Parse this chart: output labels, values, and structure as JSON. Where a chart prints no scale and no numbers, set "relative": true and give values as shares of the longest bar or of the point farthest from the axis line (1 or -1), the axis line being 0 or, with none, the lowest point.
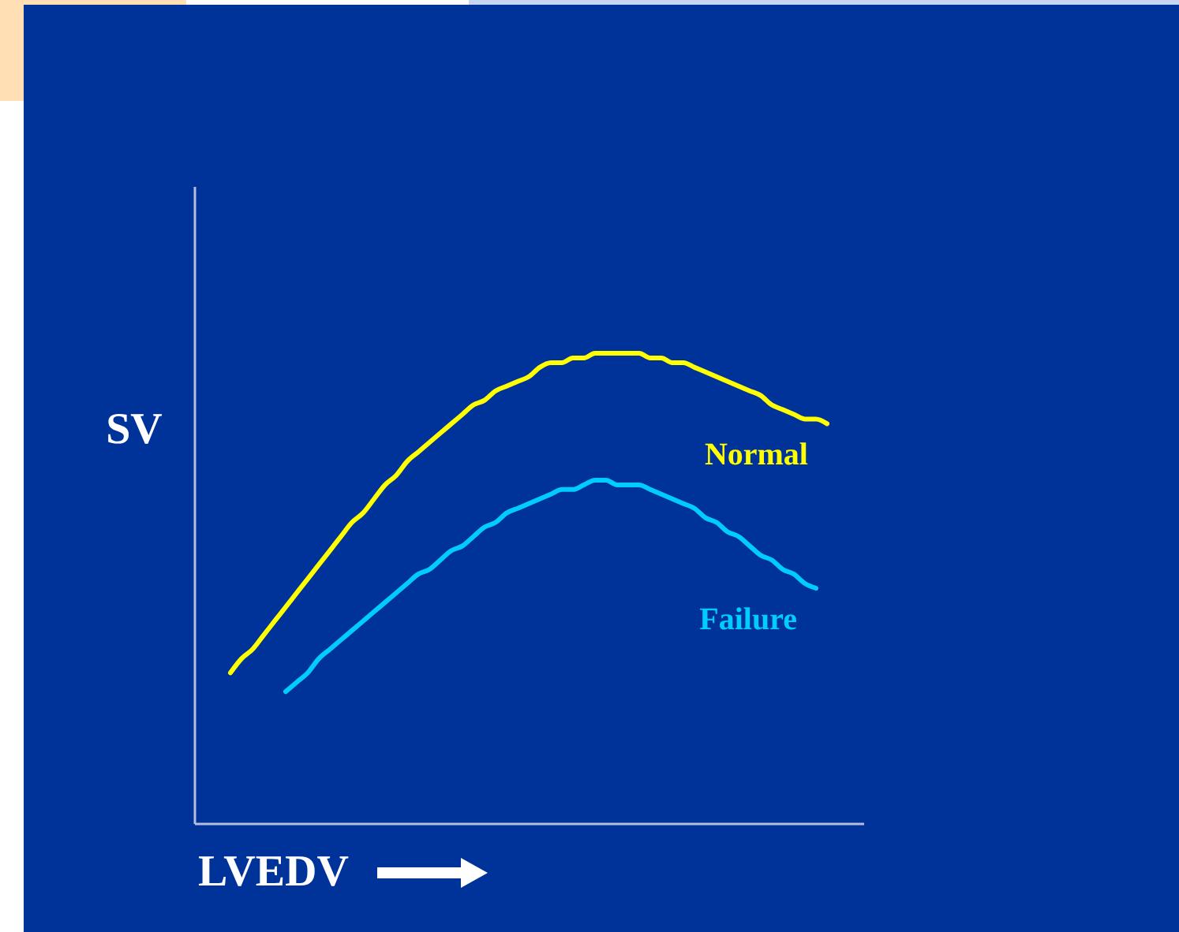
{
  "chart_data": {
    "type": "line",
    "relative": true,
    "xlabel": "LVEDV",
    "ylabel": "SV",
    "categories": [
      null,
      null,
      null,
      null,
      null,
      null,
      null,
      null,
      null,
      null,
      null,
      null,
      null,
      null,
      null,
      null,
      null,
      null,
      null,
      null,
      null,
      null,
      null,
      null,
      null,
      null,
      null,
      null,
      null,
      null,
      null,
      null,
      null,
      null,
      null,
      null,
      null,
      null,
      null,
      null,
      null,
      null,
      null,
      null,
      null,
      null,
      null,
      null,
      null,
      null,
      null,
      null,
      null,
      null,
      null
    ],
    "series": [
      {
        "name": "Normal",
        "color": "#ffff00",
        "values": [
          0.32,
          0.35,
          0.37,
          0.4,
          0.43,
          0.46,
          0.49,
          0.52,
          0.55,
          0.58,
          0.61,
          0.64,
          0.66,
          0.69,
          0.72,
          0.74,
          0.77,
          0.79,
          0.81,
          0.83,
          0.85,
          0.87,
          0.89,
          0.9,
          0.92,
          0.93,
          0.94,
          0.95,
          0.97,
          0.98,
          0.98,
          0.99,
          0.99,
          1.0,
          1,
          1,
          1,
          1.0,
          0.99,
          0.99,
          0.98,
          0.98,
          0.97,
          0.96,
          0.95,
          0.94,
          0.93,
          0.92,
          0.91,
          0.89,
          0.88,
          0.87,
          0.86,
          0.86,
          0.85
        ]
      },
      {
        "name": "Failure",
        "color": "#00ccff",
        "values": [
          null,
          null,
          null,
          null,
          null,
          0.28,
          0.3,
          0.32,
          0.35,
          0.37,
          0.39,
          0.41,
          0.43,
          0.45,
          0.47,
          0.49,
          0.51,
          0.53,
          0.54,
          0.56,
          0.58,
          0.59,
          0.61,
          0.63,
          0.64,
          0.66,
          0.67,
          0.68,
          0.69,
          0.7,
          0.71,
          0.71,
          0.72,
          0.73,
          0.73,
          0.72,
          0.72,
          0.72,
          0.71,
          0.7,
          0.69,
          0.68,
          0.67,
          0.65,
          0.64,
          0.62,
          0.61,
          0.59,
          0.57,
          0.56,
          0.54,
          0.53,
          0.51,
          0.5,
          null
        ]
      }
    ]
  }
}
